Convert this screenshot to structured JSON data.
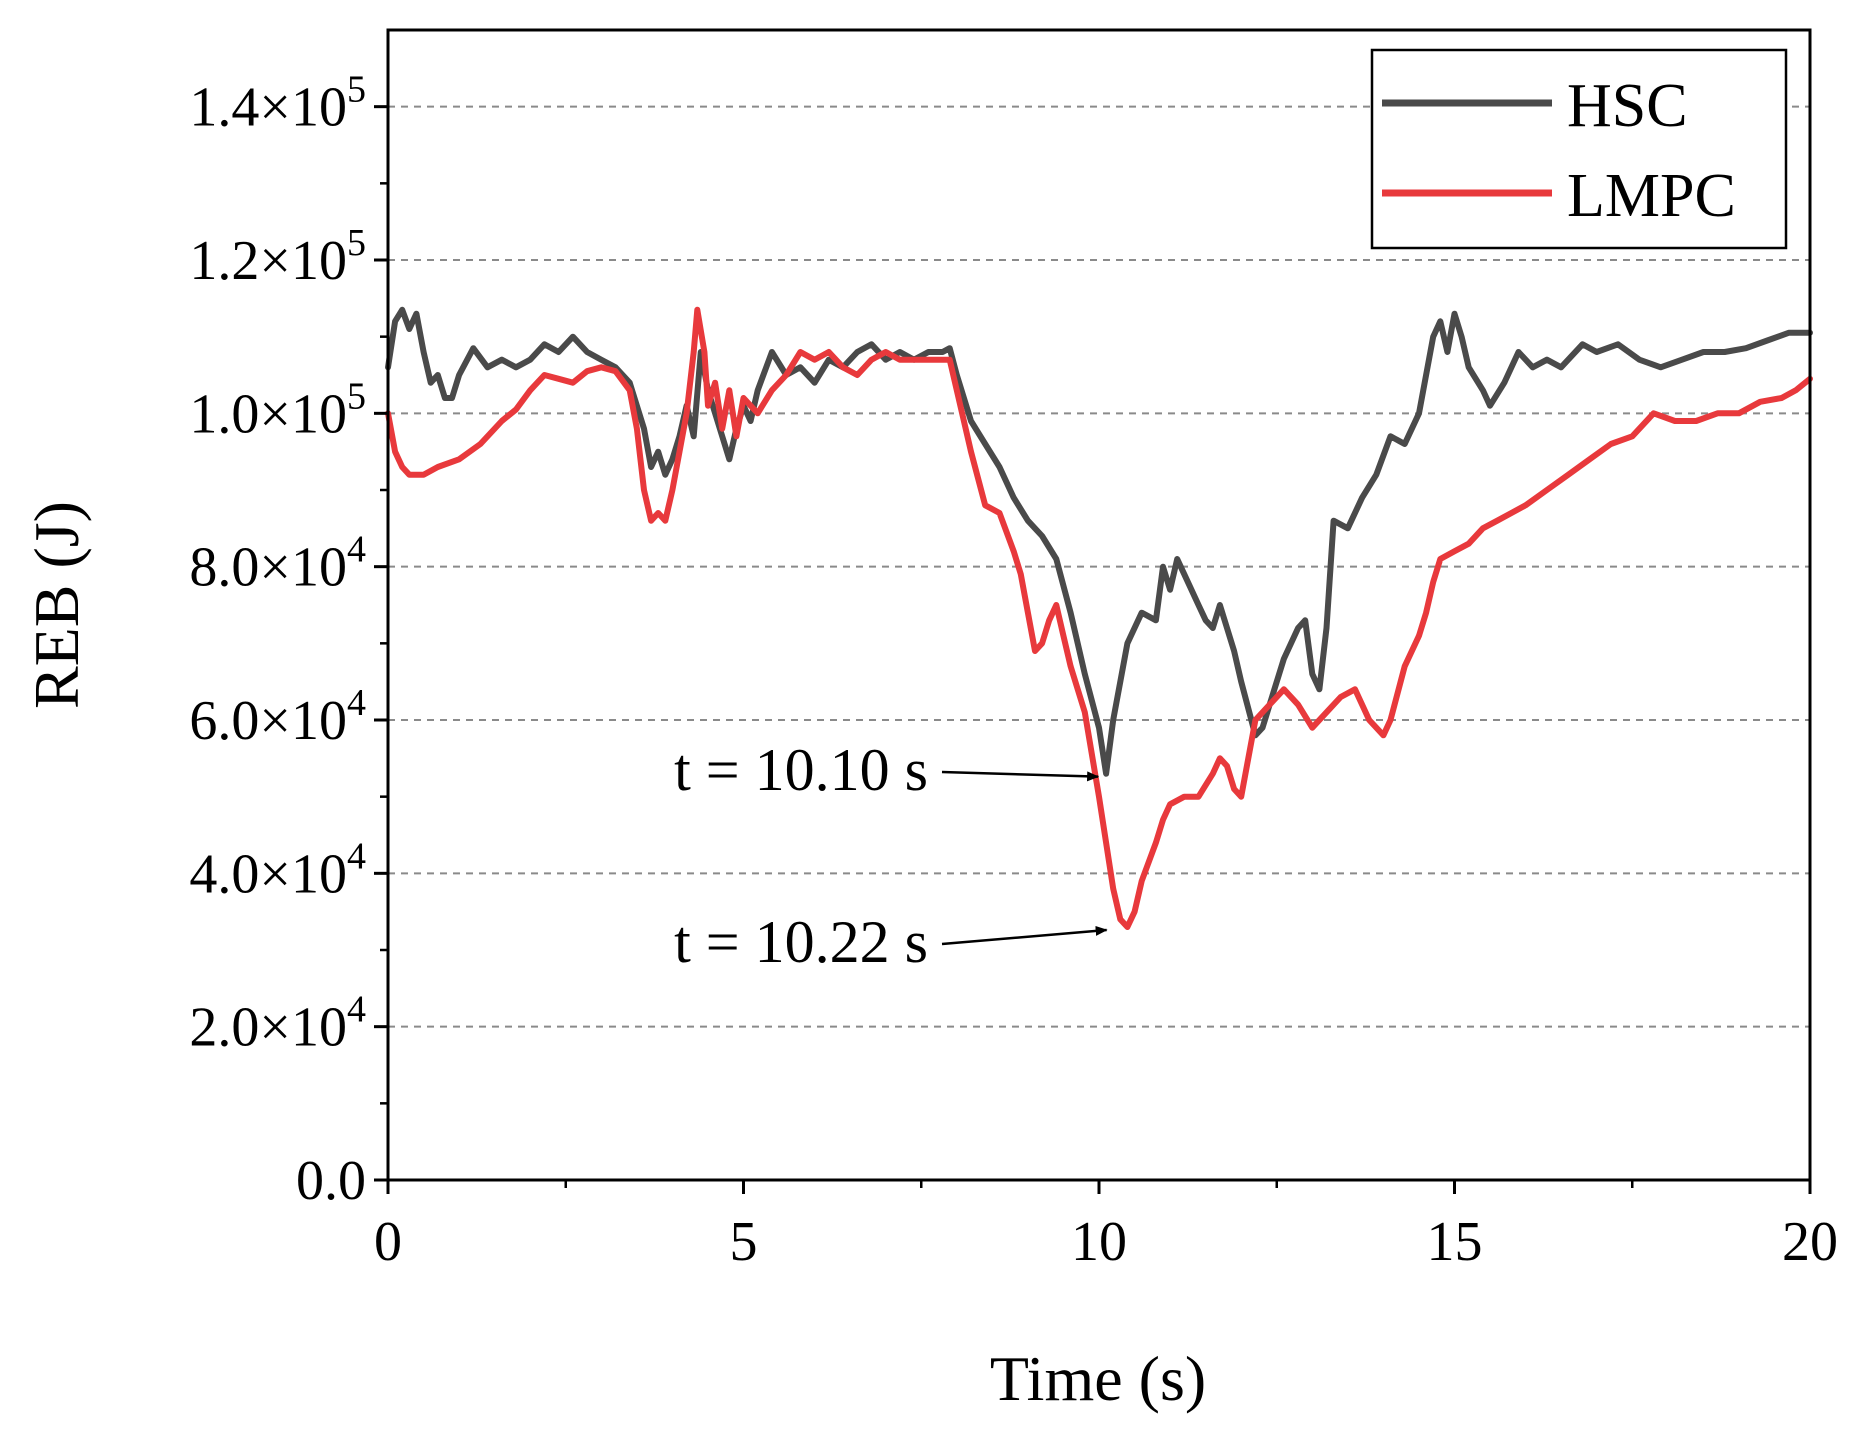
{
  "chart_data": {
    "type": "line",
    "xlabel": "Time (s)",
    "ylabel": "REB (J)",
    "xlim": [
      0,
      20
    ],
    "ylim": [
      0,
      150000
    ],
    "x_ticks": [
      {
        "value": 0,
        "label": "0"
      },
      {
        "value": 5,
        "label": "5"
      },
      {
        "value": 10,
        "label": "10"
      },
      {
        "value": 15,
        "label": "15"
      },
      {
        "value": 20,
        "label": "20"
      }
    ],
    "y_ticks": [
      {
        "value": 0,
        "mantissa": "0.0",
        "exp": ""
      },
      {
        "value": 20000,
        "mantissa": "2.0×10",
        "exp": "4"
      },
      {
        "value": 40000,
        "mantissa": "4.0×10",
        "exp": "4"
      },
      {
        "value": 60000,
        "mantissa": "6.0×10",
        "exp": "4"
      },
      {
        "value": 80000,
        "mantissa": "8.0×10",
        "exp": "4"
      },
      {
        "value": 100000,
        "mantissa": "1.0×10",
        "exp": "5"
      },
      {
        "value": 120000,
        "mantissa": "1.2×10",
        "exp": "5"
      },
      {
        "value": 140000,
        "mantissa": "1.4×10",
        "exp": "5"
      }
    ],
    "grid": "horizontal-dashed",
    "legend_position": "top-right",
    "series": [
      {
        "name": "HSC",
        "color": "#4a4a4a",
        "points": [
          [
            0,
            106000
          ],
          [
            0.1,
            112000
          ],
          [
            0.2,
            113500
          ],
          [
            0.3,
            111000
          ],
          [
            0.4,
            113000
          ],
          [
            0.5,
            108000
          ],
          [
            0.6,
            104000
          ],
          [
            0.7,
            105000
          ],
          [
            0.8,
            102000
          ],
          [
            0.9,
            102000
          ],
          [
            1.0,
            105000
          ],
          [
            1.2,
            108500
          ],
          [
            1.4,
            106000
          ],
          [
            1.6,
            107000
          ],
          [
            1.8,
            106000
          ],
          [
            2.0,
            107000
          ],
          [
            2.2,
            109000
          ],
          [
            2.4,
            108000
          ],
          [
            2.6,
            110000
          ],
          [
            2.8,
            108000
          ],
          [
            3.0,
            107000
          ],
          [
            3.2,
            106000
          ],
          [
            3.4,
            104000
          ],
          [
            3.6,
            98000
          ],
          [
            3.7,
            93000
          ],
          [
            3.8,
            95000
          ],
          [
            3.9,
            92000
          ],
          [
            4.0,
            94000
          ],
          [
            4.1,
            97000
          ],
          [
            4.2,
            101000
          ],
          [
            4.3,
            97000
          ],
          [
            4.4,
            108000
          ],
          [
            4.5,
            103000
          ],
          [
            4.6,
            100000
          ],
          [
            4.7,
            97000
          ],
          [
            4.8,
            94000
          ],
          [
            4.9,
            98000
          ],
          [
            5.0,
            101000
          ],
          [
            5.1,
            99000
          ],
          [
            5.2,
            103000
          ],
          [
            5.4,
            108000
          ],
          [
            5.6,
            105000
          ],
          [
            5.8,
            106000
          ],
          [
            6.0,
            104000
          ],
          [
            6.2,
            107000
          ],
          [
            6.4,
            106000
          ],
          [
            6.6,
            108000
          ],
          [
            6.8,
            109000
          ],
          [
            7.0,
            107000
          ],
          [
            7.2,
            108000
          ],
          [
            7.4,
            107000
          ],
          [
            7.6,
            108000
          ],
          [
            7.8,
            108000
          ],
          [
            7.9,
            108500
          ],
          [
            8.0,
            105000
          ],
          [
            8.2,
            99000
          ],
          [
            8.4,
            96000
          ],
          [
            8.6,
            93000
          ],
          [
            8.8,
            89000
          ],
          [
            9.0,
            86000
          ],
          [
            9.2,
            84000
          ],
          [
            9.4,
            81000
          ],
          [
            9.6,
            74000
          ],
          [
            9.8,
            66000
          ],
          [
            10.0,
            59000
          ],
          [
            10.1,
            53000
          ],
          [
            10.2,
            60000
          ],
          [
            10.4,
            70000
          ],
          [
            10.6,
            74000
          ],
          [
            10.8,
            73000
          ],
          [
            10.9,
            80000
          ],
          [
            11.0,
            77000
          ],
          [
            11.1,
            81000
          ],
          [
            11.2,
            79000
          ],
          [
            11.4,
            75000
          ],
          [
            11.5,
            73000
          ],
          [
            11.6,
            72000
          ],
          [
            11.7,
            75000
          ],
          [
            11.8,
            72000
          ],
          [
            11.9,
            69000
          ],
          [
            12.0,
            65000
          ],
          [
            12.2,
            58000
          ],
          [
            12.3,
            59000
          ],
          [
            12.4,
            62000
          ],
          [
            12.6,
            68000
          ],
          [
            12.8,
            72000
          ],
          [
            12.9,
            73000
          ],
          [
            13.0,
            66000
          ],
          [
            13.1,
            64000
          ],
          [
            13.2,
            72000
          ],
          [
            13.3,
            86000
          ],
          [
            13.5,
            85000
          ],
          [
            13.7,
            89000
          ],
          [
            13.9,
            92000
          ],
          [
            14.1,
            97000
          ],
          [
            14.3,
            96000
          ],
          [
            14.5,
            100000
          ],
          [
            14.6,
            105000
          ],
          [
            14.7,
            110000
          ],
          [
            14.8,
            112000
          ],
          [
            14.9,
            108000
          ],
          [
            15.0,
            113000
          ],
          [
            15.1,
            110000
          ],
          [
            15.2,
            106000
          ],
          [
            15.4,
            103000
          ],
          [
            15.5,
            101000
          ],
          [
            15.7,
            104000
          ],
          [
            15.9,
            108000
          ],
          [
            16.1,
            106000
          ],
          [
            16.3,
            107000
          ],
          [
            16.5,
            106000
          ],
          [
            16.8,
            109000
          ],
          [
            17.0,
            108000
          ],
          [
            17.3,
            109000
          ],
          [
            17.6,
            107000
          ],
          [
            17.9,
            106000
          ],
          [
            18.2,
            107000
          ],
          [
            18.5,
            108000
          ],
          [
            18.8,
            108000
          ],
          [
            19.1,
            108500
          ],
          [
            19.4,
            109500
          ],
          [
            19.7,
            110500
          ],
          [
            20.0,
            110500
          ]
        ]
      },
      {
        "name": "LMPC",
        "color": "#e8393c",
        "points": [
          [
            0,
            100000
          ],
          [
            0.1,
            95000
          ],
          [
            0.2,
            93000
          ],
          [
            0.3,
            92000
          ],
          [
            0.5,
            92000
          ],
          [
            0.7,
            93000
          ],
          [
            1.0,
            94000
          ],
          [
            1.3,
            96000
          ],
          [
            1.6,
            99000
          ],
          [
            1.8,
            100500
          ],
          [
            2.0,
            103000
          ],
          [
            2.2,
            105000
          ],
          [
            2.4,
            104500
          ],
          [
            2.6,
            104000
          ],
          [
            2.8,
            105500
          ],
          [
            3.0,
            106000
          ],
          [
            3.2,
            105500
          ],
          [
            3.4,
            103000
          ],
          [
            3.5,
            98000
          ],
          [
            3.6,
            90000
          ],
          [
            3.7,
            86000
          ],
          [
            3.8,
            87000
          ],
          [
            3.9,
            86000
          ],
          [
            4.0,
            90000
          ],
          [
            4.1,
            95000
          ],
          [
            4.2,
            100000
          ],
          [
            4.3,
            108000
          ],
          [
            4.35,
            113500
          ],
          [
            4.45,
            108000
          ],
          [
            4.5,
            101000
          ],
          [
            4.6,
            104000
          ],
          [
            4.7,
            98000
          ],
          [
            4.8,
            103000
          ],
          [
            4.9,
            97000
          ],
          [
            5.0,
            102000
          ],
          [
            5.2,
            100000
          ],
          [
            5.4,
            103000
          ],
          [
            5.6,
            105000
          ],
          [
            5.8,
            108000
          ],
          [
            6.0,
            107000
          ],
          [
            6.2,
            108000
          ],
          [
            6.4,
            106000
          ],
          [
            6.6,
            105000
          ],
          [
            6.8,
            107000
          ],
          [
            7.0,
            108000
          ],
          [
            7.2,
            107000
          ],
          [
            7.5,
            107000
          ],
          [
            7.8,
            107000
          ],
          [
            7.9,
            107000
          ],
          [
            8.0,
            103000
          ],
          [
            8.2,
            95000
          ],
          [
            8.4,
            88000
          ],
          [
            8.6,
            87000
          ],
          [
            8.8,
            82000
          ],
          [
            8.9,
            79000
          ],
          [
            9.0,
            74000
          ],
          [
            9.1,
            69000
          ],
          [
            9.2,
            70000
          ],
          [
            9.3,
            73000
          ],
          [
            9.4,
            75000
          ],
          [
            9.5,
            71000
          ],
          [
            9.6,
            67000
          ],
          [
            9.8,
            61000
          ],
          [
            10.0,
            50000
          ],
          [
            10.2,
            38000
          ],
          [
            10.3,
            34000
          ],
          [
            10.4,
            33000
          ],
          [
            10.5,
            35000
          ],
          [
            10.6,
            39000
          ],
          [
            10.8,
            44000
          ],
          [
            10.9,
            47000
          ],
          [
            11.0,
            49000
          ],
          [
            11.2,
            50000
          ],
          [
            11.4,
            50000
          ],
          [
            11.6,
            53000
          ],
          [
            11.7,
            55000
          ],
          [
            11.8,
            54000
          ],
          [
            11.9,
            51000
          ],
          [
            12.0,
            50000
          ],
          [
            12.1,
            55000
          ],
          [
            12.2,
            60000
          ],
          [
            12.4,
            62000
          ],
          [
            12.6,
            64000
          ],
          [
            12.8,
            62000
          ],
          [
            13.0,
            59000
          ],
          [
            13.2,
            61000
          ],
          [
            13.4,
            63000
          ],
          [
            13.6,
            64000
          ],
          [
            13.8,
            60000
          ],
          [
            14.0,
            58000
          ],
          [
            14.1,
            60000
          ],
          [
            14.3,
            67000
          ],
          [
            14.5,
            71000
          ],
          [
            14.6,
            74000
          ],
          [
            14.7,
            78000
          ],
          [
            14.8,
            81000
          ],
          [
            15.0,
            82000
          ],
          [
            15.2,
            83000
          ],
          [
            15.4,
            85000
          ],
          [
            15.6,
            86000
          ],
          [
            15.8,
            87000
          ],
          [
            16.0,
            88000
          ],
          [
            16.3,
            90000
          ],
          [
            16.6,
            92000
          ],
          [
            16.9,
            94000
          ],
          [
            17.2,
            96000
          ],
          [
            17.5,
            97000
          ],
          [
            17.8,
            100000
          ],
          [
            18.1,
            99000
          ],
          [
            18.4,
            99000
          ],
          [
            18.7,
            100000
          ],
          [
            19.0,
            100000
          ],
          [
            19.3,
            101500
          ],
          [
            19.6,
            102000
          ],
          [
            19.8,
            103000
          ],
          [
            20.0,
            104500
          ]
        ]
      }
    ],
    "annotations": [
      {
        "text": "t = 10.10 s",
        "target": [
          10.1,
          53000
        ]
      },
      {
        "text": "t = 10.22 s",
        "target": [
          10.22,
          33000
        ]
      }
    ]
  }
}
